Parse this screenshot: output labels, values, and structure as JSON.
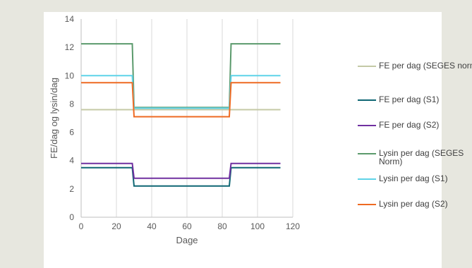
{
  "chart_data": {
    "type": "line",
    "xlabel": "Dage",
    "ylabel": "FE/dag og lysin/dag",
    "xlim": [
      0,
      120
    ],
    "ylim": [
      0,
      14
    ],
    "xticks": [
      0,
      20,
      40,
      60,
      80,
      100,
      120
    ],
    "yticks": [
      0,
      2,
      4,
      6,
      8,
      10,
      12,
      14
    ],
    "grid": "vertical",
    "legend_position": "right",
    "series": [
      {
        "name": "FE per dag (SEGES norm)",
        "color": "#c4c9a6",
        "x": [
          0,
          29,
          30,
          84,
          85,
          113
        ],
        "y": [
          7.6,
          7.6,
          7.6,
          7.6,
          7.6,
          7.6
        ]
      },
      {
        "name": "FE per dag (S1)",
        "color": "#0e6673",
        "x": [
          0,
          29,
          30,
          84,
          85,
          113
        ],
        "y": [
          3.5,
          3.5,
          2.2,
          2.2,
          3.5,
          3.5
        ]
      },
      {
        "name": "FE per dag (S2)",
        "color": "#7030a0",
        "x": [
          0,
          29,
          30,
          84,
          85,
          113
        ],
        "y": [
          3.8,
          3.8,
          2.75,
          2.75,
          3.8,
          3.8
        ]
      },
      {
        "name": "Lysin per dag (SEGES Norm)",
        "color": "#5b9a6c",
        "x": [
          0,
          29,
          30,
          84,
          85,
          113
        ],
        "y": [
          12.25,
          12.25,
          7.75,
          7.75,
          12.25,
          12.25
        ]
      },
      {
        "name": "Lysin per dag (S1)",
        "color": "#5fd3e8",
        "x": [
          0,
          29,
          30,
          84,
          85,
          113
        ],
        "y": [
          10,
          10,
          7.7,
          7.7,
          10,
          10
        ]
      },
      {
        "name": "Lysin per dag (S2)",
        "color": "#ee6a22",
        "x": [
          0,
          29,
          30,
          84,
          85,
          113
        ],
        "y": [
          9.5,
          9.5,
          7.1,
          7.1,
          9.5,
          9.5
        ]
      }
    ]
  }
}
